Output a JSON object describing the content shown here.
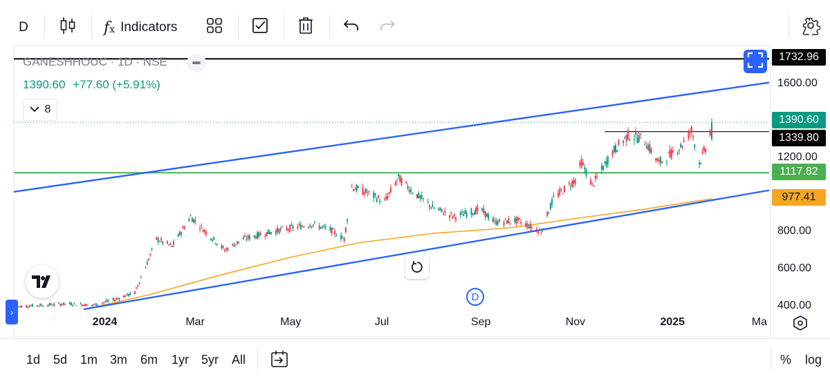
{
  "toolbar": {
    "interval": "D",
    "indicators_label": "Indicators",
    "icons": [
      "candles-icon",
      "fx-icon",
      "layouts-icon",
      "checkbox-icon",
      "trash-icon",
      "undo-icon",
      "redo-icon",
      "settings-icon"
    ]
  },
  "legend": {
    "title": "GANESHHOUC · 1D · NSE",
    "price": "1390.60",
    "change": "+77.60 (+5.91%)",
    "indicator_count": "8"
  },
  "price_tags": {
    "top_line": "1732.96",
    "last_price": "1390.60",
    "resistance": "1339.80",
    "support": "1117.82",
    "moving_average": "977.41"
  },
  "colors": {
    "up": "#089981",
    "down": "#f23645",
    "trendline": "#2962ff",
    "support_line": "#4caf50",
    "moving_average": "#f5a623",
    "black_line": "#000000"
  },
  "bottom_bar": {
    "ranges": [
      "1d",
      "5d",
      "1m",
      "3m",
      "6m",
      "1yr",
      "5yr",
      "All"
    ],
    "percent_label": "%",
    "log_label": "log"
  },
  "event_marker": "D",
  "chart_data": {
    "type": "candlestick",
    "symbol": "GANESHHOUC",
    "interval": "1D",
    "exchange": "NSE",
    "y_ticks": [
      400,
      600,
      800,
      1000,
      1200,
      1400,
      1600
    ],
    "y_tick_labels": [
      "400.00",
      "600.00",
      "800.00",
      "",
      "1200.00",
      "",
      "1600.00"
    ],
    "ylim": [
      380,
      1790
    ],
    "x_ticks": [
      {
        "label": "2024",
        "date": "2024-01-01",
        "bold": true
      },
      {
        "label": "Mar",
        "date": "2024-03-01",
        "bold": false
      },
      {
        "label": "May",
        "date": "2024-05-01",
        "bold": false
      },
      {
        "label": "Jul",
        "date": "2024-07-01",
        "bold": false
      },
      {
        "label": "Sep",
        "date": "2024-09-01",
        "bold": false
      },
      {
        "label": "Nov",
        "date": "2024-11-01",
        "bold": false
      },
      {
        "label": "2025",
        "date": "2025-01-01",
        "bold": true
      },
      {
        "label": "Ma",
        "date": "2025-03-01",
        "bold": false
      }
    ],
    "xlim": [
      "2023-11-05",
      "2025-03-06"
    ],
    "price_path": [
      {
        "date": "2023-11-07",
        "close": 395
      },
      {
        "date": "2023-12-10",
        "close": 410
      },
      {
        "date": "2023-12-26",
        "close": 402
      },
      {
        "date": "2024-01-08",
        "close": 430
      },
      {
        "date": "2024-01-22",
        "close": 470
      },
      {
        "date": "2024-01-30",
        "close": 630
      },
      {
        "date": "2024-02-05",
        "close": 760
      },
      {
        "date": "2024-02-15",
        "close": 720
      },
      {
        "date": "2024-02-27",
        "close": 880
      },
      {
        "date": "2024-03-10",
        "close": 780
      },
      {
        "date": "2024-03-20",
        "close": 700
      },
      {
        "date": "2024-04-01",
        "close": 760
      },
      {
        "date": "2024-04-20",
        "close": 800
      },
      {
        "date": "2024-05-15",
        "close": 840
      },
      {
        "date": "2024-05-27",
        "close": 810
      },
      {
        "date": "2024-06-05",
        "close": 760
      },
      {
        "date": "2024-06-10",
        "close": 1040
      },
      {
        "date": "2024-06-20",
        "close": 1010
      },
      {
        "date": "2024-07-01",
        "close": 960
      },
      {
        "date": "2024-07-10",
        "close": 1090
      },
      {
        "date": "2024-07-20",
        "close": 1010
      },
      {
        "date": "2024-08-01",
        "close": 930
      },
      {
        "date": "2024-08-15",
        "close": 880
      },
      {
        "date": "2024-09-01",
        "close": 920
      },
      {
        "date": "2024-09-10",
        "close": 850
      },
      {
        "date": "2024-09-25",
        "close": 860
      },
      {
        "date": "2024-10-10",
        "close": 800
      },
      {
        "date": "2024-10-18",
        "close": 980
      },
      {
        "date": "2024-11-01",
        "close": 1080
      },
      {
        "date": "2024-11-05",
        "close": 1175
      },
      {
        "date": "2024-11-12",
        "close": 1050
      },
      {
        "date": "2024-11-25",
        "close": 1230
      },
      {
        "date": "2024-12-05",
        "close": 1320
      },
      {
        "date": "2024-12-15",
        "close": 1300
      },
      {
        "date": "2024-12-25",
        "close": 1170
      },
      {
        "date": "2025-01-08",
        "close": 1260
      },
      {
        "date": "2025-01-15",
        "close": 1350
      },
      {
        "date": "2025-01-20",
        "close": 1170
      },
      {
        "date": "2025-01-26",
        "close": 1290
      },
      {
        "date": "2025-01-28",
        "close": 1390.6
      }
    ],
    "moving_average": [
      {
        "date": "2023-12-26",
        "value": 390
      },
      {
        "date": "2024-02-01",
        "value": 460
      },
      {
        "date": "2024-03-15",
        "value": 560
      },
      {
        "date": "2024-05-01",
        "value": 660
      },
      {
        "date": "2024-06-15",
        "value": 740
      },
      {
        "date": "2024-08-01",
        "value": 790
      },
      {
        "date": "2024-09-20",
        "value": 820
      },
      {
        "date": "2024-11-01",
        "value": 870
      },
      {
        "date": "2024-12-15",
        "value": 920
      },
      {
        "date": "2025-01-28",
        "value": 977.41
      }
    ],
    "upper_channel": [
      {
        "date": "2023-11-05",
        "value": 1015
      },
      {
        "date": "2025-03-06",
        "value": 1605
      }
    ],
    "lower_channel": [
      {
        "date": "2023-12-20",
        "value": 380
      },
      {
        "date": "2025-03-06",
        "value": 1023
      }
    ],
    "horizontal_lines": [
      {
        "label": "1732.96",
        "value": 1732.96
      },
      {
        "label": "1339.80",
        "value": 1339.8
      },
      {
        "label": "1117.82",
        "value": 1117.82
      }
    ],
    "last_price": 1390.6
  }
}
